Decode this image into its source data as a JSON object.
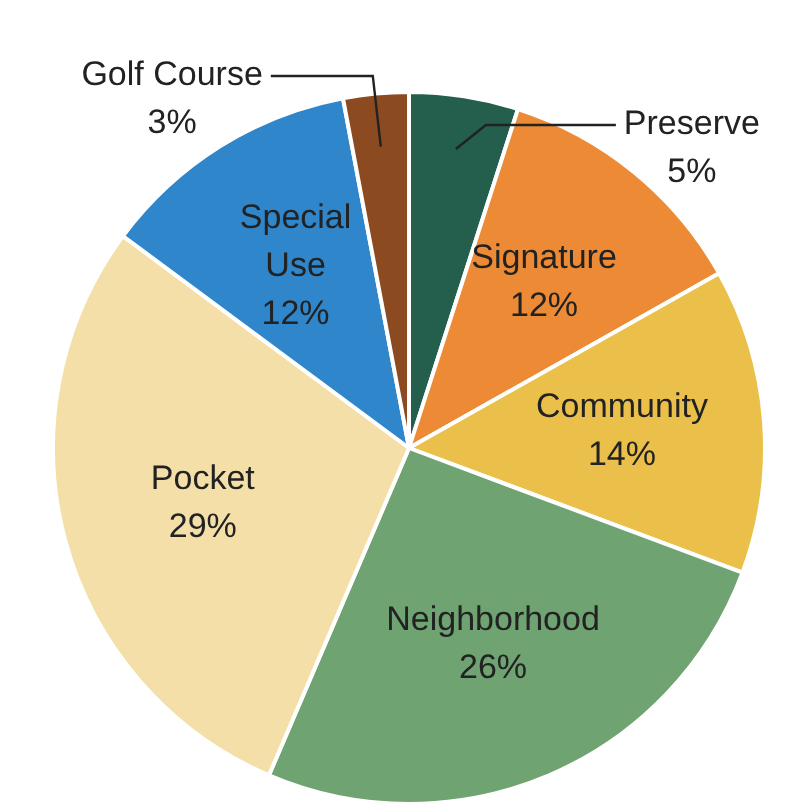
{
  "chart_data": {
    "type": "pie",
    "categories": [
      "Preserve",
      "Signature",
      "Community",
      "Neighborhood",
      "Pocket",
      "Special Use",
      "Golf Course"
    ],
    "values": [
      5,
      12,
      14,
      26,
      29,
      12,
      3
    ],
    "value_labels": [
      "5%",
      "12%",
      "14%",
      "26%",
      "29%",
      "12%",
      "3%"
    ],
    "colors": [
      "#245e4c",
      "#ec8a35",
      "#ebc04a",
      "#6fa371",
      "#f3dfa7",
      "#2f86cb",
      "#8b4a20"
    ],
    "legend": false
  }
}
